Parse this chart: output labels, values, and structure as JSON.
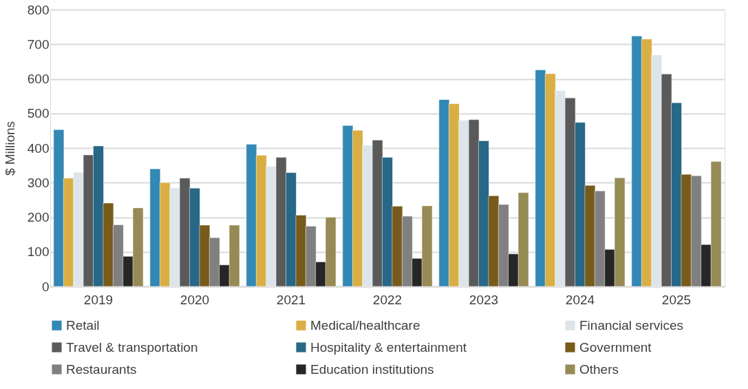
{
  "chart_data": {
    "type": "bar",
    "ylabel": "$ Millions",
    "categories": [
      "2019",
      "2020",
      "2021",
      "2022",
      "2023",
      "2024",
      "2025"
    ],
    "ylim": [
      0,
      800
    ],
    "yticks": [
      0,
      100,
      200,
      300,
      400,
      500,
      600,
      700,
      800
    ],
    "grid": "y",
    "legend": "bottom",
    "series": [
      {
        "name": "Retail",
        "color": "#3388b4",
        "values": [
          453,
          340,
          411,
          465,
          540,
          626,
          724
        ]
      },
      {
        "name": "Medical/healthcare",
        "color": "#d9ae43",
        "values": [
          313,
          300,
          379,
          451,
          528,
          615,
          715
        ]
      },
      {
        "name": "Financial services",
        "color": "#dde5eb",
        "values": [
          330,
          285,
          347,
          408,
          480,
          566,
          669
        ]
      },
      {
        "name": "Travel & transportation",
        "color": "#5a5a5a",
        "values": [
          380,
          313,
          373,
          423,
          482,
          545,
          614
        ]
      },
      {
        "name": "Hospitality & entertainment",
        "color": "#276787",
        "values": [
          406,
          284,
          329,
          373,
          421,
          474,
          531
        ]
      },
      {
        "name": "Government",
        "color": "#785a1b",
        "values": [
          241,
          177,
          206,
          232,
          262,
          292,
          324
        ]
      },
      {
        "name": "Restaurants",
        "color": "#808080",
        "values": [
          178,
          141,
          174,
          203,
          237,
          276,
          320
        ]
      },
      {
        "name": "Education institutions",
        "color": "#262626",
        "values": [
          87,
          62,
          71,
          81,
          94,
          107,
          121
        ]
      },
      {
        "name": "Others",
        "color": "#968b55",
        "values": [
          227,
          177,
          200,
          233,
          271,
          314,
          361
        ]
      }
    ]
  }
}
